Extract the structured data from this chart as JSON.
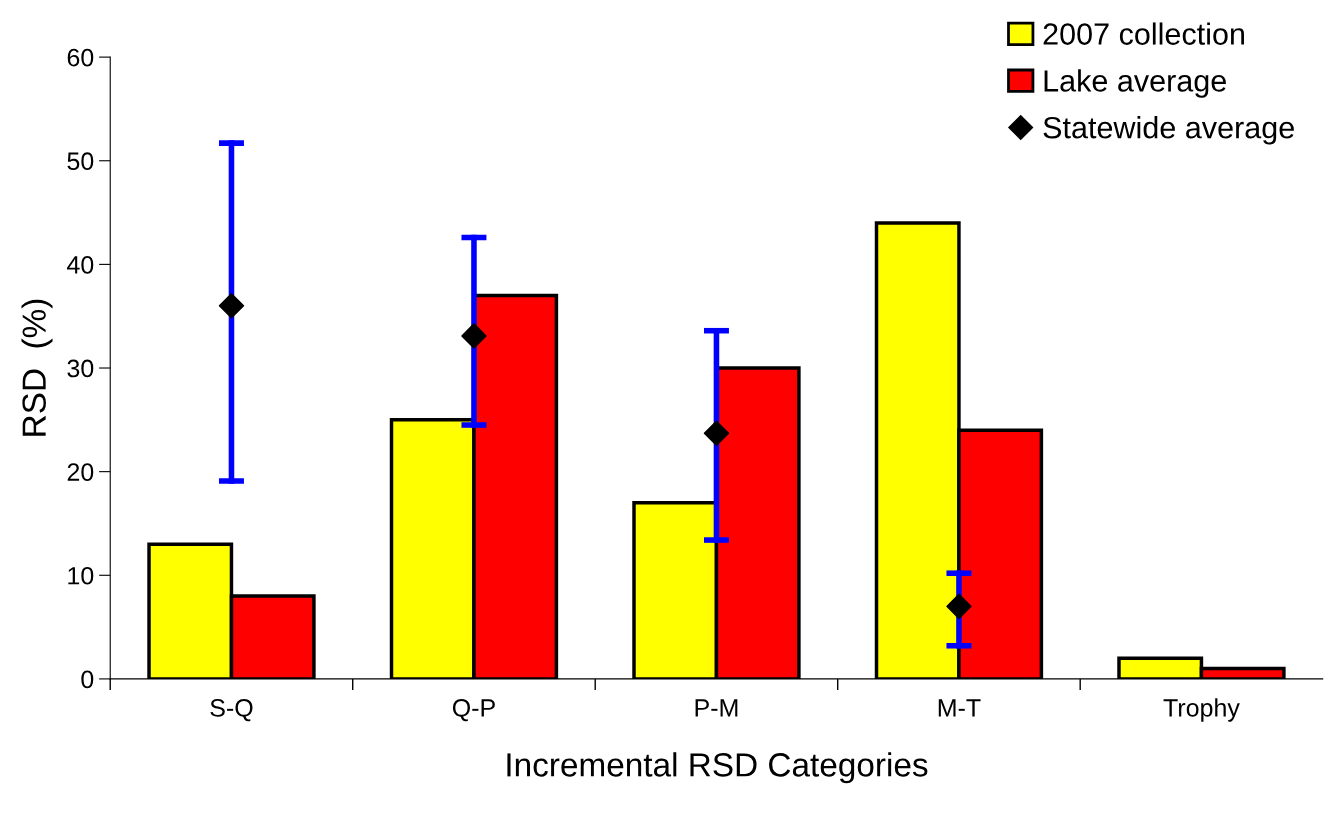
{
  "chart_data": {
    "type": "bar",
    "xlabel": "Incremental RSD Categories",
    "ylabel": "RSD  (%)",
    "categories": [
      "S-Q",
      "Q-P",
      "P-M",
      "M-T",
      "Trophy"
    ],
    "series": [
      {
        "name": "2007 collection",
        "color": "#ffff00",
        "values": [
          13,
          25,
          17,
          44,
          2
        ]
      },
      {
        "name": "Lake average",
        "color": "#ff0000",
        "values": [
          8,
          37,
          30,
          24,
          1
        ]
      },
      {
        "name": "Statewide average",
        "type": "scatter",
        "color": "#000000",
        "marker": "diamond",
        "x": [
          "S-Q",
          "Q-P",
          "P-M",
          "M-T",
          "Trophy"
        ],
        "values": [
          36,
          33.1,
          23.7,
          7,
          null
        ],
        "errors": [
          [
            19.1,
            51.7
          ],
          [
            24.5,
            42.6
          ],
          [
            13.4,
            33.6
          ],
          [
            3.2,
            10.2
          ],
          null
        ]
      }
    ],
    "ylim": [
      0,
      60
    ],
    "yticks": [
      0,
      10,
      20,
      30,
      40,
      50,
      60
    ],
    "grid": false,
    "legend": "top right"
  }
}
